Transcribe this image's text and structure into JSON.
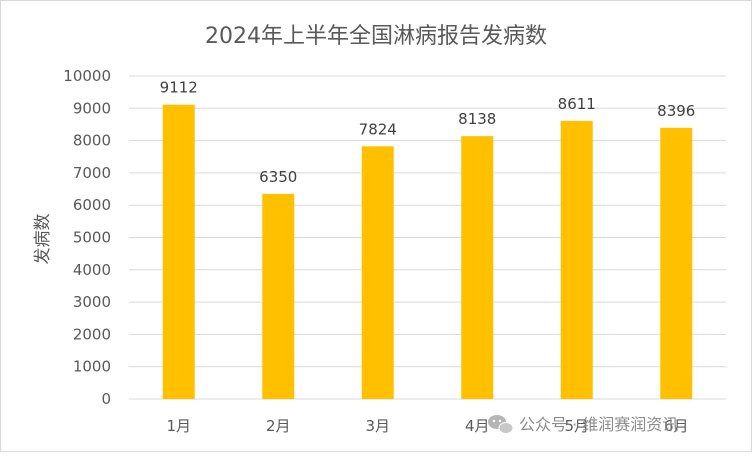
{
  "chart_data": {
    "type": "bar",
    "title": "2024年上半年全国淋病报告发病数",
    "xlabel": "",
    "ylabel": "发病数",
    "categories": [
      "1月",
      "2月",
      "3月",
      "4月",
      "5月",
      "6月"
    ],
    "values": [
      9112,
      6350,
      7824,
      8138,
      8611,
      8396
    ],
    "ylim": [
      0,
      10000
    ],
    "yticks": [
      0,
      1000,
      2000,
      3000,
      4000,
      5000,
      6000,
      7000,
      8000,
      9000,
      10000
    ],
    "grid": true,
    "legend": "none",
    "bar_color": "#FFC000",
    "grid_color": "#d9d9d9"
  },
  "watermark": {
    "text": "公众号 · 维润赛润资讯",
    "icon": "wechat-icon"
  }
}
